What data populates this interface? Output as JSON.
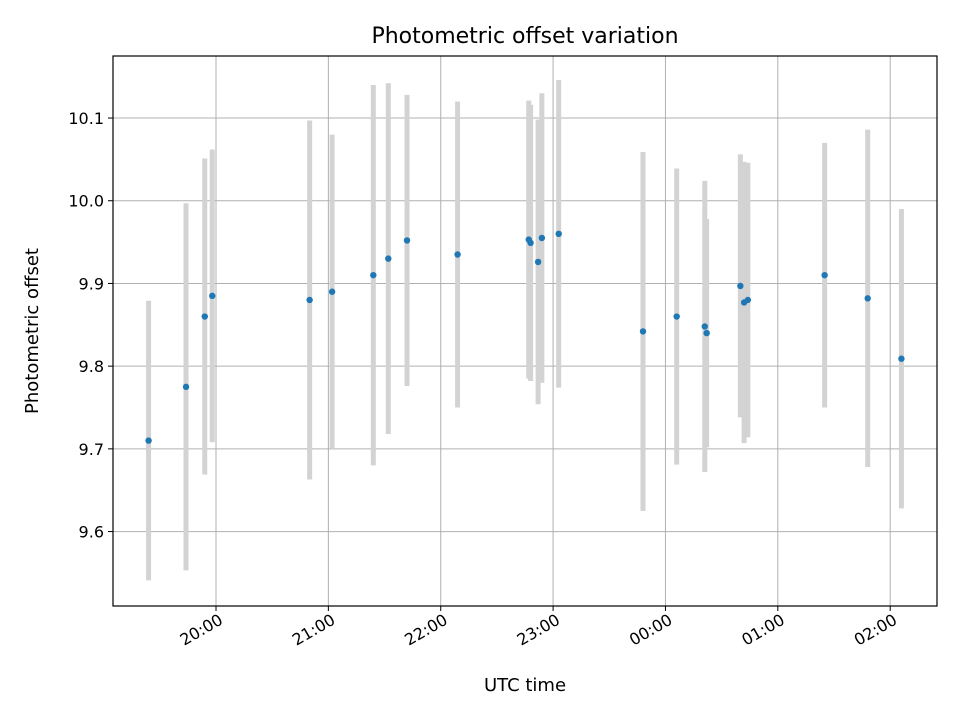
{
  "chart_data": {
    "type": "scatter",
    "title": "Photometric offset variation",
    "xlabel": "UTC time",
    "ylabel": "Photometric offset",
    "xlim": [
      "19:05",
      "02:25"
    ],
    "ylim": [
      9.51,
      10.175
    ],
    "grid": true,
    "x_tick_labels": [
      "20:00",
      "21:00",
      "22:00",
      "23:00",
      "00:00",
      "01:00",
      "02:00"
    ],
    "y_tick_labels": [
      "9.6",
      "9.7",
      "9.8",
      "9.9",
      "10.0",
      "10.1"
    ],
    "colors": {
      "points": "#1f77b4",
      "errorbars": "#d3d3d3",
      "grid": "#b0b0b0"
    },
    "points": [
      {
        "t": "19:24",
        "y": 9.71,
        "err": 0.169
      },
      {
        "t": "19:44",
        "y": 9.775,
        "err": 0.222
      },
      {
        "t": "19:54",
        "y": 9.86,
        "err": 0.191
      },
      {
        "t": "19:58",
        "y": 9.885,
        "err": 0.177
      },
      {
        "t": "20:50",
        "y": 9.88,
        "err": 0.217
      },
      {
        "t": "21:02",
        "y": 9.89,
        "err": 0.19
      },
      {
        "t": "21:24",
        "y": 9.91,
        "err": 0.23
      },
      {
        "t": "21:32",
        "y": 9.93,
        "err": 0.212
      },
      {
        "t": "21:42",
        "y": 9.952,
        "err": 0.176
      },
      {
        "t": "22:09",
        "y": 9.935,
        "err": 0.185
      },
      {
        "t": "22:47",
        "y": 9.953,
        "err": 0.168
      },
      {
        "t": "22:48",
        "y": 9.949,
        "err": 0.167
      },
      {
        "t": "22:52",
        "y": 9.926,
        "err": 0.172
      },
      {
        "t": "22:54",
        "y": 9.955,
        "err": 0.175
      },
      {
        "t": "23:03",
        "y": 9.96,
        "err": 0.186
      },
      {
        "t": "23:48",
        "y": 9.842,
        "err": 0.217
      },
      {
        "t": "00:06",
        "y": 9.86,
        "err": 0.179
      },
      {
        "t": "00:21",
        "y": 9.848,
        "err": 0.176
      },
      {
        "t": "00:22",
        "y": 9.84,
        "err": 0.138
      },
      {
        "t": "00:40",
        "y": 9.897,
        "err": 0.159
      },
      {
        "t": "00:42",
        "y": 9.877,
        "err": 0.17
      },
      {
        "t": "00:44",
        "y": 9.88,
        "err": 0.166
      },
      {
        "t": "01:25",
        "y": 9.91,
        "err": 0.16
      },
      {
        "t": "01:48",
        "y": 9.882,
        "err": 0.204
      },
      {
        "t": "02:06",
        "y": 9.809,
        "err": 0.181
      }
    ]
  }
}
